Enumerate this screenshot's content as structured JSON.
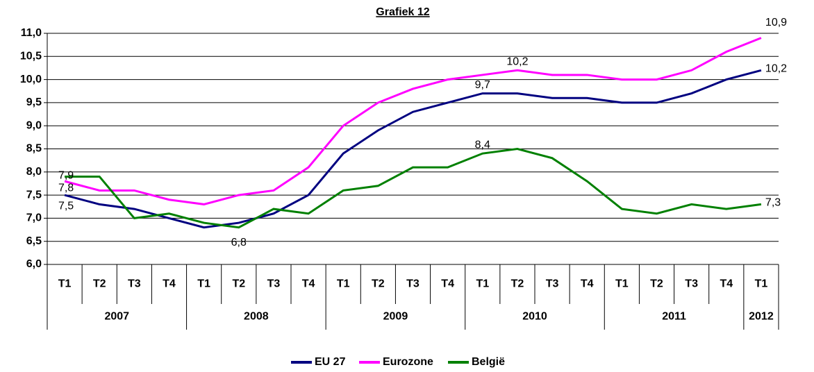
{
  "chart_data": {
    "type": "line",
    "title": "Grafiek 12",
    "categories": [
      "T1",
      "T2",
      "T3",
      "T4",
      "T1",
      "T2",
      "T3",
      "T4",
      "T1",
      "T2",
      "T3",
      "T4",
      "T1",
      "T2",
      "T3",
      "T4",
      "T1",
      "T2",
      "T3",
      "T4",
      "T1"
    ],
    "groups": [
      {
        "label": "2007",
        "count": 4
      },
      {
        "label": "2008",
        "count": 4
      },
      {
        "label": "2009",
        "count": 4
      },
      {
        "label": "2010",
        "count": 4
      },
      {
        "label": "2011",
        "count": 4
      },
      {
        "label": "2012",
        "count": 1
      }
    ],
    "series": [
      {
        "name": "EU 27",
        "color": "#000080",
        "values": [
          7.5,
          7.3,
          7.2,
          7.0,
          6.8,
          6.9,
          7.1,
          7.5,
          8.4,
          8.9,
          9.3,
          9.5,
          9.7,
          9.7,
          9.6,
          9.6,
          9.5,
          9.5,
          9.7,
          10.0,
          10.2
        ],
        "value_labels": [
          "7,5",
          null,
          null,
          null,
          null,
          null,
          null,
          null,
          null,
          null,
          null,
          null,
          "9,7",
          null,
          null,
          null,
          null,
          null,
          null,
          null,
          "10,2"
        ]
      },
      {
        "name": "Eurozone",
        "color": "#ff00ff",
        "values": [
          7.8,
          7.6,
          7.6,
          7.4,
          7.3,
          7.5,
          7.6,
          8.1,
          9.0,
          9.5,
          9.8,
          10.0,
          10.1,
          10.2,
          10.1,
          10.1,
          10.0,
          10.0,
          10.2,
          10.6,
          10.9
        ],
        "value_labels": [
          "7,8",
          null,
          null,
          null,
          null,
          null,
          null,
          null,
          null,
          null,
          null,
          null,
          null,
          "10,2",
          null,
          null,
          null,
          null,
          null,
          null,
          "10,9"
        ]
      },
      {
        "name": "België",
        "color": "#008000",
        "values": [
          7.9,
          7.9,
          7.0,
          7.1,
          6.9,
          6.8,
          7.2,
          7.1,
          7.6,
          7.7,
          8.1,
          8.1,
          8.4,
          8.5,
          8.3,
          7.8,
          7.2,
          7.1,
          7.3,
          7.2,
          7.3
        ],
        "value_labels": [
          "7,9",
          null,
          null,
          null,
          null,
          "6,8",
          null,
          null,
          null,
          null,
          null,
          null,
          "8,4",
          null,
          null,
          null,
          null,
          null,
          null,
          null,
          "7,3"
        ]
      }
    ],
    "ylim": [
      6,
      11
    ],
    "yticks": [
      {
        "value": 6,
        "label": "6,0"
      },
      {
        "value": 6.5,
        "label": "6,5"
      },
      {
        "value": 7,
        "label": "7,0"
      },
      {
        "value": 7.5,
        "label": "7,5"
      },
      {
        "value": 8,
        "label": "8,0"
      },
      {
        "value": 8.5,
        "label": "8,5"
      },
      {
        "value": 9,
        "label": "9,0"
      },
      {
        "value": 9.5,
        "label": "9,5"
      },
      {
        "value": 10,
        "label": "10,0"
      },
      {
        "value": 10.5,
        "label": "10,5"
      },
      {
        "value": 11,
        "label": "11,0"
      }
    ],
    "grid": true,
    "legend": "bottom"
  }
}
